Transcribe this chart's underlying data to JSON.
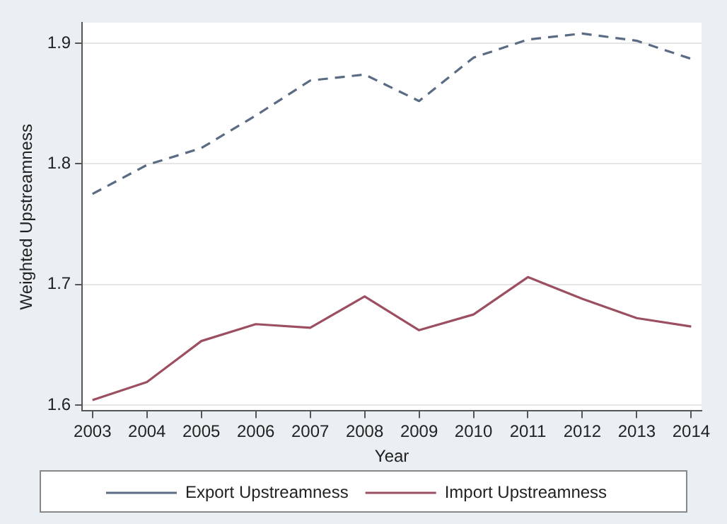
{
  "chart_data": {
    "type": "line",
    "xlabel": "Year",
    "ylabel": "Weighted Upstreamness",
    "x": [
      2003,
      2004,
      2005,
      2006,
      2007,
      2008,
      2009,
      2010,
      2011,
      2012,
      2013,
      2014
    ],
    "series": [
      {
        "name": "Export Upstreamness",
        "color": "#5b6b84",
        "line_style": "dashed",
        "values": [
          1.775,
          1.799,
          1.813,
          1.84,
          1.869,
          1.874,
          1.852,
          1.888,
          1.903,
          1.908,
          1.902,
          1.887
        ]
      },
      {
        "name": "Import Upstreamness",
        "color": "#9b4f60",
        "line_style": "solid",
        "values": [
          1.604,
          1.619,
          1.653,
          1.667,
          1.664,
          1.69,
          1.662,
          1.675,
          1.706,
          1.688,
          1.672,
          1.665
        ]
      }
    ],
    "xlim": [
      2002.81,
      2014.19
    ],
    "xticks": [
      2003,
      2004,
      2005,
      2006,
      2007,
      2008,
      2009,
      2010,
      2011,
      2012,
      2013,
      2014
    ],
    "ylim": [
      1.595,
      1.917
    ],
    "yticks": [
      1.6,
      1.7,
      1.8,
      1.9
    ],
    "grid": "y",
    "legend": "bottom",
    "marker": "none"
  }
}
